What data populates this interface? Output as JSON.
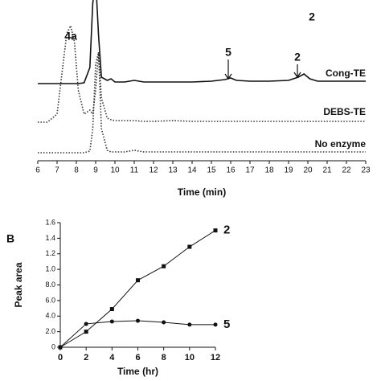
{
  "chart_data": [
    {
      "type": "line",
      "xlabel": "Time (min)",
      "x": [
        6,
        6.5,
        7,
        7.3,
        7.5,
        7.7,
        7.9,
        8.1,
        8.4,
        8.7,
        8.85,
        9,
        9.15,
        9.3,
        9.6,
        9.8,
        10,
        10.5,
        11,
        11.5,
        12,
        13,
        14,
        15,
        15.7,
        16,
        16.3,
        17,
        18,
        19,
        19.5,
        19.8,
        20.1,
        20.5,
        21,
        22,
        23
      ],
      "xlim": [
        6,
        23
      ],
      "xticks": [
        6,
        7,
        8,
        9,
        10,
        11,
        12,
        13,
        14,
        15,
        16,
        17,
        18,
        19,
        20,
        21,
        22,
        23
      ],
      "annotations": [
        "4a",
        "5",
        "2",
        "2"
      ],
      "series": [
        {
          "name": "Cong-TE",
          "color": "#111111",
          "dashed": false,
          "values": [
            0,
            0,
            0,
            0,
            0,
            0,
            0,
            0,
            1,
            20,
            100,
            130,
            60,
            8,
            4,
            6,
            2,
            2,
            4,
            2,
            2,
            2,
            2,
            3,
            5,
            7,
            4,
            3,
            3,
            4,
            8,
            12,
            6,
            3,
            3,
            3,
            3
          ]
        },
        {
          "name": "DEBS-TE",
          "color": "#333333",
          "dashed": true,
          "values": [
            0,
            0,
            10,
            70,
            110,
            120,
            100,
            40,
            10,
            15,
            10,
            40,
            87,
            30,
            5,
            3,
            2,
            2,
            2,
            1,
            1,
            2,
            1,
            1,
            1,
            1,
            1,
            1,
            1,
            1,
            1,
            1,
            1,
            1,
            1,
            1,
            1
          ]
        },
        {
          "name": "No enzyme",
          "color": "#333333",
          "dashed": true,
          "values": [
            0,
            0,
            0,
            0,
            0,
            0,
            0,
            0,
            0,
            2,
            30,
            110,
            125,
            30,
            3,
            1,
            1,
            1,
            3,
            1,
            1,
            1,
            1,
            1,
            1,
            1,
            1,
            1,
            1,
            1,
            1,
            1,
            1,
            1,
            1,
            1,
            1
          ]
        }
      ]
    },
    {
      "type": "line",
      "panel": "B",
      "xlabel": "Time (hr)",
      "ylabel": "Peak area",
      "x": [
        0,
        2,
        4,
        6,
        8,
        10,
        12
      ],
      "xlim": [
        0,
        12
      ],
      "xticks": [
        0,
        2,
        4,
        6,
        8,
        10,
        12
      ],
      "ylim": [
        0,
        1.6
      ],
      "yticks": [
        0,
        {
          "value": 0.2,
          "label": "2.0"
        },
        {
          "value": 0.4,
          "label": "4.0"
        },
        {
          "value": 0.6,
          "label": "6.0"
        },
        {
          "value": 0.8,
          "label": "8.0"
        },
        {
          "value": 1.0,
          "label": "1.0"
        },
        {
          "value": 1.2,
          "label": "1.2"
        },
        {
          "value": 1.4,
          "label": "1.4"
        },
        {
          "value": 1.6,
          "label": "1.6"
        }
      ],
      "series": [
        {
          "name": "2",
          "color": "#111111",
          "marker": "square",
          "values": [
            0,
            0.2,
            0.49,
            0.86,
            1.04,
            1.29,
            1.5
          ]
        },
        {
          "name": "5",
          "color": "#111111",
          "marker": "circle",
          "values": [
            0,
            0.3,
            0.33,
            0.34,
            0.32,
            0.29,
            0.29
          ]
        }
      ]
    }
  ]
}
